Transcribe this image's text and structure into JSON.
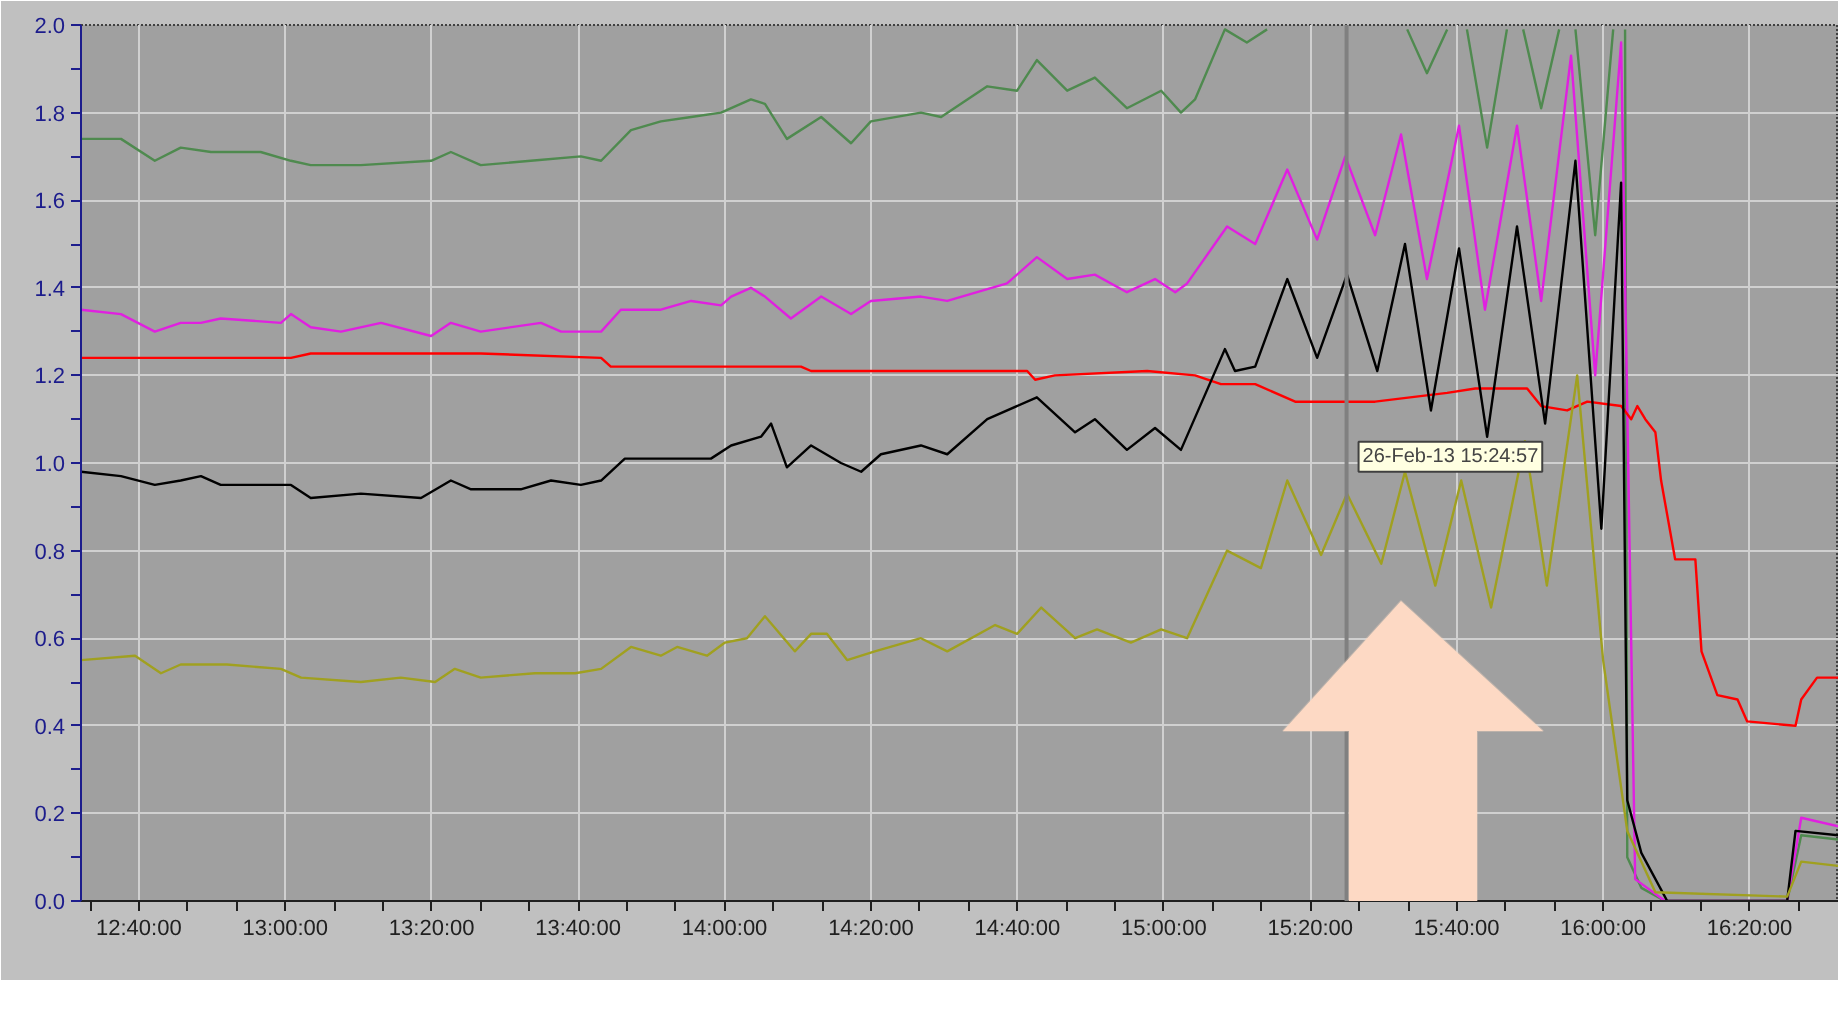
{
  "chart_data": {
    "type": "line",
    "xlim": [
      12.535,
      16.537
    ],
    "ylim": [
      0,
      2
    ],
    "xticks": [
      {
        "value": 12.556,
        "label": null
      },
      {
        "value": 12.666667,
        "label": "12:40:00"
      },
      {
        "value": 12.778,
        "label": null
      },
      {
        "value": 12.889,
        "label": null
      },
      {
        "value": 13,
        "label": "13:00:00"
      },
      {
        "value": 13.111,
        "label": null
      },
      {
        "value": 13.222,
        "label": null
      },
      {
        "value": 13.333333,
        "label": "13:20:00"
      },
      {
        "value": 13.444,
        "label": null
      },
      {
        "value": 13.556,
        "label": null
      },
      {
        "value": 13.666667,
        "label": "13:40:00"
      },
      {
        "value": 13.778,
        "label": null
      },
      {
        "value": 13.889,
        "label": null
      },
      {
        "value": 14,
        "label": "14:00:00"
      },
      {
        "value": 14.111,
        "label": null
      },
      {
        "value": 14.222,
        "label": null
      },
      {
        "value": 14.333333,
        "label": "14:20:00"
      },
      {
        "value": 14.444,
        "label": null
      },
      {
        "value": 14.556,
        "label": null
      },
      {
        "value": 14.666667,
        "label": "14:40:00"
      },
      {
        "value": 14.778,
        "label": null
      },
      {
        "value": 14.889,
        "label": null
      },
      {
        "value": 15,
        "label": "15:00:00"
      },
      {
        "value": 15.111,
        "label": null
      },
      {
        "value": 15.222,
        "label": null
      },
      {
        "value": 15.333333,
        "label": "15:20:00"
      },
      {
        "value": 15.444,
        "label": null
      },
      {
        "value": 15.556,
        "label": null
      },
      {
        "value": 15.666667,
        "label": "15:40:00"
      },
      {
        "value": 15.778,
        "label": null
      },
      {
        "value": 15.889,
        "label": null
      },
      {
        "value": 16,
        "label": "16:00:00"
      },
      {
        "value": 16.111,
        "label": null
      },
      {
        "value": 16.222,
        "label": null
      },
      {
        "value": 16.333333,
        "label": "16:20:00"
      },
      {
        "value": 16.444,
        "label": null
      }
    ],
    "yticks": [
      {
        "value": 0,
        "label": "0.0"
      },
      {
        "value": 0.1,
        "label": null
      },
      {
        "value": 0.2,
        "label": "0.2"
      },
      {
        "value": 0.3,
        "label": null
      },
      {
        "value": 0.4,
        "label": "0.4"
      },
      {
        "value": 0.5,
        "label": null
      },
      {
        "value": 0.6,
        "label": "0.6"
      },
      {
        "value": 0.7,
        "label": null
      },
      {
        "value": 0.8,
        "label": "0.8"
      },
      {
        "value": 0.9,
        "label": null
      },
      {
        "value": 1,
        "label": "1.0"
      },
      {
        "value": 1.1,
        "label": null
      },
      {
        "value": 1.2,
        "label": "1.2"
      },
      {
        "value": 1.3,
        "label": null
      },
      {
        "value": 1.4,
        "label": "1.4"
      },
      {
        "value": 1.5,
        "label": null
      },
      {
        "value": 1.6,
        "label": "1.6"
      },
      {
        "value": 1.7,
        "label": null
      },
      {
        "value": 1.8,
        "label": "1.8"
      },
      {
        "value": 1.9,
        "label": null
      },
      {
        "value": 2,
        "label": "2.0"
      }
    ],
    "grid": true,
    "marker": "none",
    "line_style": "solid",
    "ref_lines": [
      {
        "axis": "x",
        "value": 15.416,
        "label": "26-Feb-13 15:24:57",
        "color": "#808080"
      }
    ],
    "series": [
      {
        "color": "#4f8a4f",
        "x": [
          12.535,
          12.626,
          12.703,
          12.762,
          12.831,
          12.944,
          13.013,
          13.058,
          13.172,
          13.332,
          13.377,
          13.445,
          13.559,
          13.673,
          13.719,
          13.787,
          13.855,
          13.924,
          13.992,
          14.06,
          14.092,
          14.142,
          14.22,
          14.288,
          14.333,
          14.447,
          14.493,
          14.598,
          14.666,
          14.711,
          14.78,
          14.843,
          14.916,
          14.994,
          15.039,
          15.071,
          15.139,
          15.189,
          15.235,
          15.281,
          15.554,
          15.599,
          15.645,
          15.668,
          15.69,
          15.736,
          15.781,
          15.8,
          15.818,
          15.859,
          15.9,
          15.918,
          15.937,
          15.982,
          16.023,
          16.041,
          16.05,
          16.055,
          16.087,
          16.141,
          16.419,
          16.451,
          16.537
        ],
        "values": [
          1.74,
          1.74,
          1.69,
          1.72,
          1.71,
          1.71,
          1.69,
          1.68,
          1.68,
          1.69,
          1.71,
          1.68,
          1.69,
          1.7,
          1.69,
          1.76,
          1.78,
          1.79,
          1.8,
          1.83,
          1.82,
          1.74,
          1.79,
          1.73,
          1.78,
          1.8,
          1.79,
          1.86,
          1.85,
          1.92,
          1.85,
          1.88,
          1.81,
          1.85,
          1.8,
          1.83,
          1.99,
          1.96,
          1.99,
          null,
          1.99,
          1.89,
          1.99,
          null,
          1.99,
          1.72,
          1.99,
          null,
          1.99,
          1.81,
          1.99,
          null,
          1.99,
          1.52,
          1.99,
          null,
          1.99,
          0.1,
          0.03,
          0.0,
          0.0,
          0.15,
          0.14
        ]
      },
      {
        "color": "#e020e0",
        "x": [
          12.535,
          12.626,
          12.703,
          12.762,
          12.808,
          12.853,
          12.99,
          13.013,
          13.058,
          13.127,
          13.218,
          13.332,
          13.377,
          13.445,
          13.582,
          13.628,
          13.719,
          13.764,
          13.855,
          13.924,
          13.992,
          14.015,
          14.06,
          14.092,
          14.151,
          14.22,
          14.288,
          14.333,
          14.447,
          14.507,
          14.643,
          14.711,
          14.78,
          14.843,
          14.916,
          14.98,
          15.026,
          15.053,
          15.144,
          15.208,
          15.281,
          15.349,
          15.413,
          15.481,
          15.54,
          15.599,
          15.672,
          15.731,
          15.804,
          15.859,
          15.927,
          15.982,
          16.041,
          16.073,
          16.141,
          16.419,
          16.451,
          16.537
        ],
        "values": [
          1.35,
          1.34,
          1.3,
          1.32,
          1.32,
          1.33,
          1.32,
          1.34,
          1.31,
          1.3,
          1.32,
          1.29,
          1.32,
          1.3,
          1.32,
          1.3,
          1.3,
          1.35,
          1.35,
          1.37,
          1.36,
          1.38,
          1.4,
          1.38,
          1.33,
          1.38,
          1.34,
          1.37,
          1.38,
          1.37,
          1.41,
          1.47,
          1.42,
          1.43,
          1.39,
          1.42,
          1.39,
          1.41,
          1.54,
          1.5,
          1.67,
          1.51,
          1.7,
          1.52,
          1.75,
          1.42,
          1.77,
          1.35,
          1.77,
          1.37,
          1.93,
          1.2,
          1.96,
          0.05,
          0.0,
          0.0,
          0.19,
          0.17
        ]
      },
      {
        "color": "#ff0000",
        "x": [
          12.535,
          12.626,
          12.717,
          13.013,
          13.058,
          13.332,
          13.445,
          13.719,
          13.741,
          13.946,
          14.174,
          14.197,
          14.447,
          14.689,
          14.707,
          14.752,
          14.962,
          15.071,
          15.13,
          15.208,
          15.299,
          15.39,
          15.481,
          15.645,
          15.709,
          15.827,
          15.859,
          15.918,
          15.964,
          16.041,
          16.064,
          16.078,
          16.096,
          16.119,
          16.132,
          16.164,
          16.21,
          16.224,
          16.26,
          16.306,
          16.328,
          16.438,
          16.451,
          16.487,
          16.537
        ],
        "values": [
          1.24,
          1.24,
          1.24,
          1.24,
          1.25,
          1.25,
          1.25,
          1.24,
          1.22,
          1.22,
          1.22,
          1.21,
          1.21,
          1.21,
          1.19,
          1.2,
          1.21,
          1.2,
          1.18,
          1.18,
          1.14,
          1.14,
          1.14,
          1.16,
          1.17,
          1.17,
          1.13,
          1.12,
          1.14,
          1.13,
          1.1,
          1.13,
          1.1,
          1.07,
          0.96,
          0.78,
          0.78,
          0.57,
          0.47,
          0.46,
          0.41,
          0.4,
          0.46,
          0.51,
          0.51
        ]
      },
      {
        "color": "#000000",
        "x": [
          12.535,
          12.626,
          12.703,
          12.762,
          12.808,
          12.853,
          12.967,
          13.013,
          13.058,
          13.172,
          13.309,
          13.377,
          13.423,
          13.536,
          13.605,
          13.673,
          13.719,
          13.773,
          13.855,
          13.969,
          14.015,
          14.083,
          14.106,
          14.142,
          14.197,
          14.265,
          14.311,
          14.356,
          14.447,
          14.507,
          14.598,
          14.711,
          14.798,
          14.843,
          14.916,
          14.98,
          15.039,
          15.139,
          15.162,
          15.208,
          15.281,
          15.349,
          15.417,
          15.486,
          15.549,
          15.608,
          15.672,
          15.736,
          15.804,
          15.868,
          15.937,
          15.996,
          16.041,
          16.055,
          16.087,
          16.146,
          16.419,
          16.438,
          16.537
        ],
        "values": [
          0.98,
          0.97,
          0.95,
          0.96,
          0.97,
          0.95,
          0.95,
          0.95,
          0.92,
          0.93,
          0.92,
          0.96,
          0.94,
          0.94,
          0.96,
          0.95,
          0.96,
          1.01,
          1.01,
          1.01,
          1.04,
          1.06,
          1.09,
          0.99,
          1.04,
          1.0,
          0.98,
          1.02,
          1.04,
          1.02,
          1.1,
          1.15,
          1.07,
          1.1,
          1.03,
          1.08,
          1.03,
          1.26,
          1.21,
          1.22,
          1.42,
          1.24,
          1.43,
          1.21,
          1.5,
          1.12,
          1.49,
          1.06,
          1.54,
          1.09,
          1.69,
          0.85,
          1.64,
          0.23,
          0.11,
          0.0,
          0.0,
          0.16,
          0.15
        ]
      },
      {
        "color": "#a0a020",
        "x": [
          12.535,
          12.658,
          12.717,
          12.762,
          12.867,
          12.99,
          13.036,
          13.172,
          13.263,
          13.341,
          13.386,
          13.445,
          13.568,
          13.66,
          13.719,
          13.787,
          13.855,
          13.892,
          13.96,
          14.001,
          14.051,
          14.092,
          14.16,
          14.197,
          14.233,
          14.279,
          14.342,
          14.447,
          14.507,
          14.616,
          14.666,
          14.721,
          14.798,
          14.848,
          14.925,
          14.994,
          15.053,
          15.144,
          15.221,
          15.281,
          15.358,
          15.417,
          15.495,
          15.549,
          15.618,
          15.677,
          15.745,
          15.822,
          15.872,
          15.941,
          16.0,
          16.055,
          16.119,
          16.419,
          16.451,
          16.537
        ],
        "values": [
          0.55,
          0.56,
          0.52,
          0.54,
          0.54,
          0.53,
          0.51,
          0.5,
          0.51,
          0.5,
          0.53,
          0.51,
          0.52,
          0.52,
          0.53,
          0.58,
          0.56,
          0.58,
          0.56,
          0.59,
          0.6,
          0.65,
          0.57,
          0.61,
          0.61,
          0.55,
          0.57,
          0.6,
          0.57,
          0.63,
          0.61,
          0.67,
          0.6,
          0.62,
          0.59,
          0.62,
          0.6,
          0.8,
          0.76,
          0.96,
          0.79,
          0.93,
          0.77,
          0.98,
          0.72,
          0.96,
          0.67,
          1.05,
          0.72,
          1.2,
          0.55,
          0.16,
          0.02,
          0.01,
          0.09,
          0.08
        ]
      }
    ]
  }
}
